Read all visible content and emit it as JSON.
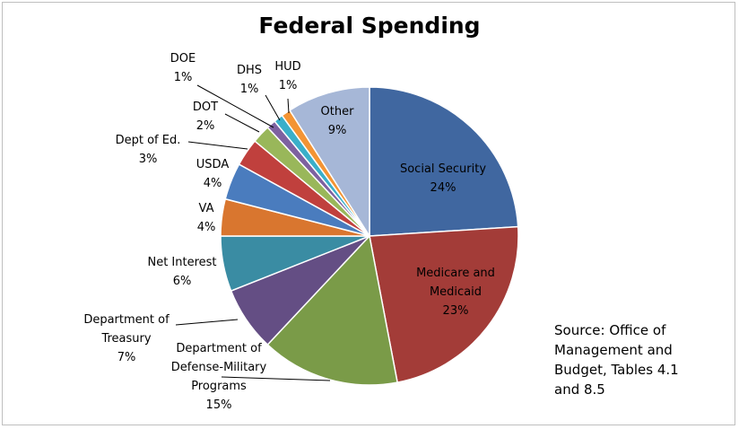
{
  "chart_data": {
    "type": "pie",
    "title": "Federal Spending",
    "slices": [
      {
        "label": "Social Security",
        "value": 24,
        "label_lines": [
          "Social Security",
          "24%"
        ],
        "color": "#4067a0"
      },
      {
        "label": "Medicare and Medicaid",
        "value": 23,
        "label_lines": [
          "Medicare and",
          "Medicaid",
          "23%"
        ],
        "color": "#a33c38"
      },
      {
        "label": "Department of Defense-Military Programs",
        "value": 15,
        "label_lines": [
          "Department of",
          "Defense-Military",
          "Programs",
          "15%"
        ],
        "color": "#7a9b48"
      },
      {
        "label": "Department of Treasury",
        "value": 7,
        "label_lines": [
          "Department of",
          "Treasury",
          "7%"
        ],
        "color": "#644e84"
      },
      {
        "label": "Net Interest",
        "value": 6,
        "label_lines": [
          "Net Interest",
          "6%"
        ],
        "color": "#3a8ca3"
      },
      {
        "label": "VA",
        "value": 4,
        "label_lines": [
          "VA",
          "4%"
        ],
        "color": "#d9762f"
      },
      {
        "label": "USDA",
        "value": 4,
        "label_lines": [
          "USDA",
          "4%"
        ],
        "color": "#4a7cbe"
      },
      {
        "label": "Dept of Ed.",
        "value": 3,
        "label_lines": [
          "Dept of Ed.",
          "3%"
        ],
        "color": "#c0403d"
      },
      {
        "label": "DOT",
        "value": 2,
        "label_lines": [
          "DOT",
          "2%"
        ],
        "color": "#99b75a"
      },
      {
        "label": "DOE",
        "value": 1,
        "label_lines": [
          "DOE",
          "1%"
        ],
        "color": "#7d61a0"
      },
      {
        "label": "DHS",
        "value": 1,
        "label_lines": [
          "DHS",
          "1%"
        ],
        "color": "#3aafc9"
      },
      {
        "label": "HUD",
        "value": 1,
        "label_lines": [
          "HUD",
          "1%"
        ],
        "color": "#f39434"
      },
      {
        "label": "Other",
        "value": 9,
        "label_lines": [
          "Other",
          "9%"
        ],
        "color": "#a6b7d7"
      }
    ]
  },
  "source_note": {
    "lines": [
      "Source: Office of",
      "Management and",
      "Budget, Tables 4.1",
      "and 8.5"
    ]
  }
}
